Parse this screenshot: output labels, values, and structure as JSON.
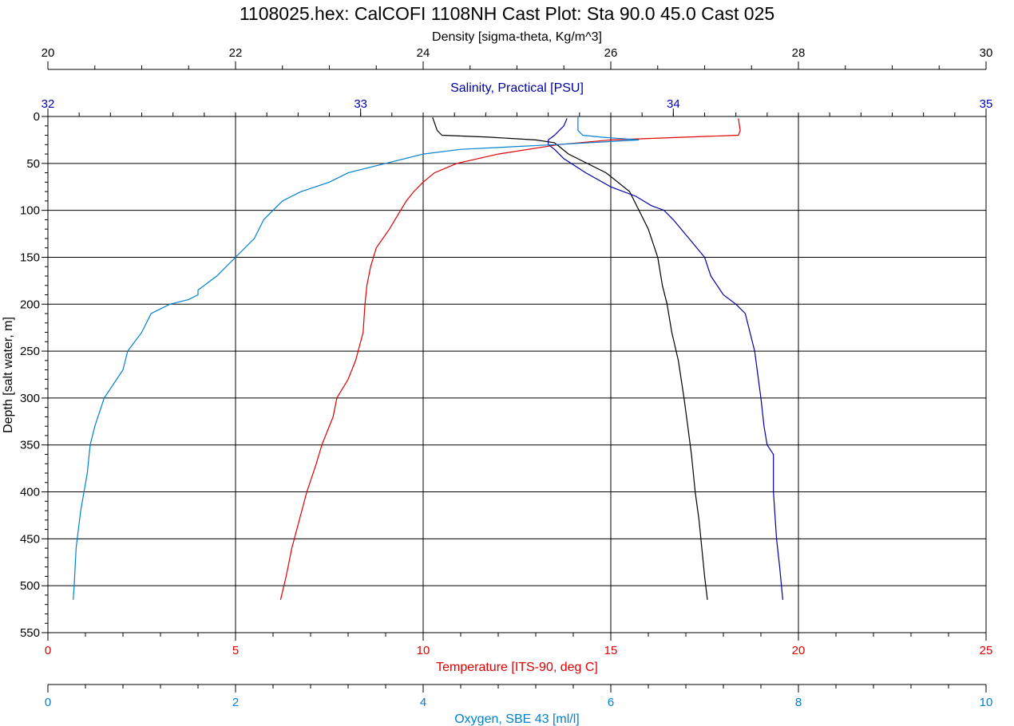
{
  "chart_data": {
    "type": "line",
    "title": "1108025.hex: CalCOFI 1108NH Cast Plot: Sta 90.0 45.0 Cast 025",
    "grid": true,
    "y_axis": {
      "label": "Depth [salt water, m]",
      "range": [
        0,
        550
      ],
      "inverted": true,
      "ticks": [
        "0",
        "50",
        "100",
        "150",
        "200",
        "250",
        "300",
        "350",
        "400",
        "450",
        "500",
        "550"
      ]
    },
    "x_axes": [
      {
        "id": "density",
        "label": "Density [sigma-theta, Kg/m^3]",
        "position": "top",
        "range": [
          20,
          30
        ],
        "color": "#000000",
        "ticks": [
          "20",
          "22",
          "24",
          "26",
          "28",
          "30"
        ]
      },
      {
        "id": "salinity",
        "label": "Salinity, Practical [PSU]",
        "position": "top",
        "range": [
          32,
          35
        ],
        "color": "#0000a0",
        "ticks": [
          "32",
          "33",
          "34",
          "35"
        ]
      },
      {
        "id": "temperature",
        "label": "Temperature [ITS-90, deg C]",
        "position": "bottom",
        "range": [
          0,
          25
        ],
        "color": "#e00000",
        "ticks": [
          "0",
          "5",
          "10",
          "15",
          "20",
          "25"
        ]
      },
      {
        "id": "oxygen",
        "label": "Oxygen, SBE 43 [ml/l]",
        "position": "bottom",
        "range": [
          0,
          10
        ],
        "color": "#0080d0",
        "ticks": [
          "0",
          "2",
          "4",
          "6",
          "8",
          "10"
        ]
      }
    ],
    "series": [
      {
        "axis": "temperature",
        "color": "#e00000",
        "depth": [
          2,
          15,
          20,
          22,
          25,
          30,
          40,
          50,
          60,
          70,
          80,
          90,
          100,
          120,
          140,
          160,
          180,
          200,
          230,
          260,
          280,
          300,
          320,
          350,
          370,
          400,
          430,
          460,
          490,
          515
        ],
        "values": [
          18.4,
          18.45,
          18.4,
          17.0,
          15.0,
          13.6,
          12.0,
          10.9,
          10.3,
          10.0,
          9.75,
          9.55,
          9.4,
          9.1,
          8.75,
          8.6,
          8.5,
          8.45,
          8.4,
          8.2,
          8.0,
          7.7,
          7.6,
          7.3,
          7.15,
          6.9,
          6.7,
          6.5,
          6.35,
          6.2
        ]
      },
      {
        "axis": "density",
        "color": "#000000",
        "depth": [
          1,
          15,
          20,
          22,
          25,
          28,
          32,
          40,
          60,
          80,
          100,
          120,
          150,
          180,
          200,
          230,
          260,
          300,
          330,
          360,
          400,
          430,
          460,
          490,
          515
        ],
        "values": [
          24.1,
          24.15,
          24.2,
          24.7,
          25.2,
          25.4,
          25.45,
          25.55,
          25.95,
          26.2,
          26.3,
          26.4,
          26.5,
          26.55,
          26.6,
          26.65,
          26.72,
          26.78,
          26.82,
          26.86,
          26.9,
          26.94,
          26.97,
          27.0,
          27.03
        ]
      },
      {
        "axis": "salinity",
        "color": "#0000a0",
        "depth": [
          2,
          10,
          20,
          25,
          30,
          35,
          45,
          60,
          75,
          85,
          95,
          100,
          110,
          130,
          150,
          170,
          190,
          200,
          210,
          250,
          300,
          330,
          350,
          360,
          400,
          450,
          480,
          515
        ],
        "values": [
          33.66,
          33.65,
          33.62,
          33.6,
          33.6,
          33.62,
          33.65,
          33.72,
          33.8,
          33.88,
          33.93,
          33.97,
          34.0,
          34.05,
          34.1,
          34.12,
          34.16,
          34.2,
          34.23,
          34.26,
          34.28,
          34.29,
          34.3,
          34.32,
          34.32,
          34.33,
          34.34,
          34.35
        ]
      },
      {
        "axis": "oxygen",
        "color": "#0080d0",
        "depth": [
          0,
          15,
          20,
          22,
          25,
          30,
          35,
          40,
          50,
          60,
          70,
          80,
          90,
          100,
          110,
          130,
          150,
          170,
          185,
          190,
          195,
          200,
          210,
          230,
          250,
          270,
          300,
          330,
          350,
          380,
          420,
          460,
          500,
          515
        ],
        "values": [
          5.65,
          5.65,
          5.7,
          5.9,
          6.3,
          5.4,
          4.4,
          4.0,
          3.6,
          3.2,
          3.0,
          2.7,
          2.5,
          2.4,
          2.3,
          2.2,
          2.0,
          1.8,
          1.6,
          1.6,
          1.5,
          1.3,
          1.1,
          1.0,
          0.85,
          0.8,
          0.6,
          0.5,
          0.45,
          0.42,
          0.35,
          0.3,
          0.28,
          0.27
        ]
      }
    ]
  }
}
